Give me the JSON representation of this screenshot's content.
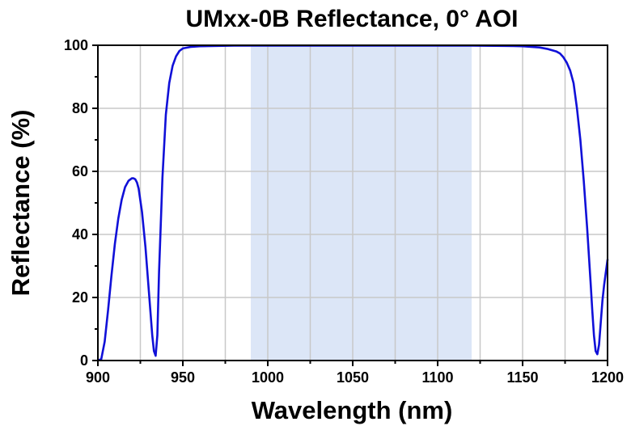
{
  "chart_data": {
    "type": "line",
    "title": "UMxx-0B Reflectance, 0° AOI",
    "xlabel": "Wavelength (nm)",
    "ylabel": "Reflectance (%)",
    "xlim": [
      900,
      1200
    ],
    "ylim": [
      0,
      100
    ],
    "x_ticks": [
      "900",
      "950",
      "1000",
      "1050",
      "1100",
      "1150",
      "1200"
    ],
    "y_ticks": [
      "0",
      "20",
      "40",
      "60",
      "80",
      "100"
    ],
    "grid": true,
    "legend": "none",
    "highlight_band": {
      "x": [
        990,
        1120
      ],
      "color": "#dce6f7"
    },
    "series": [
      {
        "color": "#1010d8",
        "x": [
          900,
          902,
          904,
          906,
          908,
          910,
          912,
          914,
          916,
          918,
          920,
          921,
          922,
          923,
          924,
          926,
          928,
          930,
          932,
          933,
          934,
          935,
          936,
          938,
          940,
          942,
          944,
          946,
          948,
          950,
          955,
          960,
          970,
          980,
          1000,
          1050,
          1100,
          1120,
          1140,
          1150,
          1160,
          1165,
          1170,
          1172,
          1174,
          1176,
          1178,
          1180,
          1182,
          1184,
          1186,
          1188,
          1190,
          1191,
          1192,
          1193,
          1194,
          1195,
          1196,
          1197,
          1198,
          1199,
          1200
        ],
        "y": [
          0,
          0.5,
          6,
          16,
          27,
          37,
          45,
          51,
          55,
          57,
          57.8,
          57.8,
          57.5,
          56.5,
          54.5,
          47,
          36,
          22,
          8,
          3,
          1.5,
          8,
          28,
          58,
          78,
          88,
          93.5,
          96.5,
          98.2,
          99,
          99.5,
          99.7,
          99.8,
          99.9,
          99.9,
          99.9,
          99.9,
          99.9,
          99.8,
          99.7,
          99.3,
          98.8,
          98,
          97.4,
          96.2,
          94.5,
          92,
          88,
          80,
          70,
          57,
          42,
          25,
          16,
          8,
          3,
          2,
          5,
          12,
          19,
          24,
          28,
          32
        ]
      }
    ]
  }
}
